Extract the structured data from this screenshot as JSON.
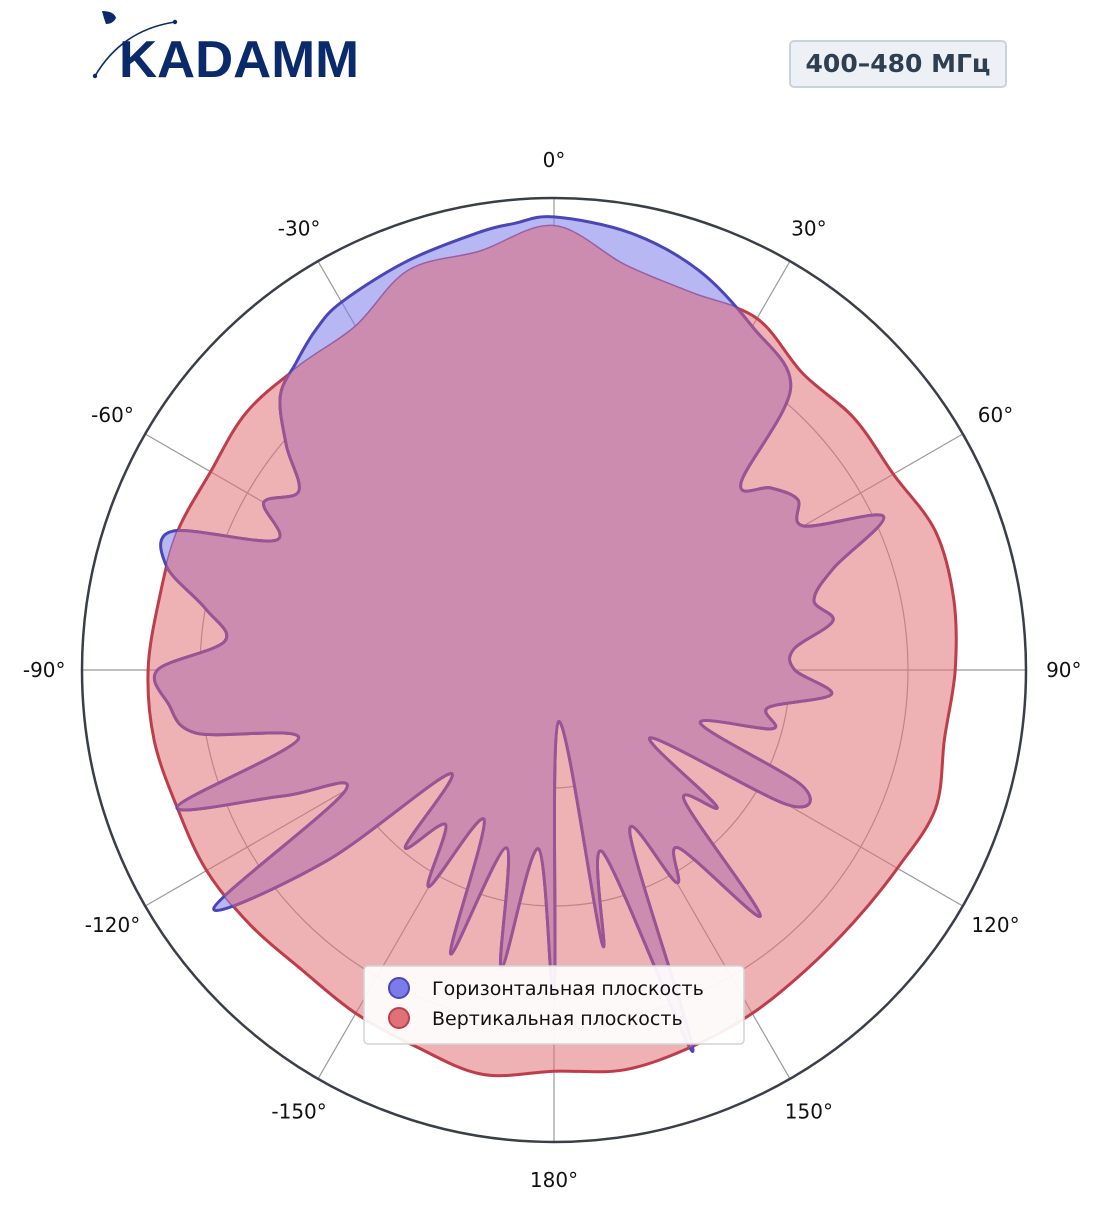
{
  "logo": {
    "text": "KADAMM",
    "color": "#0b2a6b"
  },
  "band_label": "400–480 МГц",
  "colors": {
    "horizontal_fill": "#7b7bea",
    "horizontal_line": "#4a46b8",
    "vertical_fill": "#e07177",
    "vertical_line": "#bd3d4a",
    "overlap_fill": "#cc8caf",
    "overlap_line": "#9a5393",
    "outer_ring": "#3a3e48",
    "grid": "#9a9a9a"
  },
  "chart_data": {
    "type": "polar",
    "angle_direction": "clockwise",
    "zero_location": "top",
    "theta_ticks": [
      "0°",
      "30°",
      "60°",
      "90°",
      "120°",
      "150°",
      "180°",
      "-150°",
      "-120°",
      "-90°",
      "-60°",
      "-30°"
    ],
    "r_range": [
      0,
      1
    ],
    "r_grid": [
      0.25,
      0.5,
      0.75,
      1.0
    ],
    "grid": true,
    "legend_placement": "lower-center",
    "series": [
      {
        "name": "Горизонтальная плоскость",
        "angles_deg": [
          0,
          10,
          20,
          30,
          40,
          45,
          50,
          55,
          60,
          65,
          70,
          75,
          80,
          85,
          90,
          95,
          100,
          105,
          110,
          115,
          120,
          125,
          130,
          135,
          140,
          145,
          150,
          155,
          160,
          165,
          170,
          175,
          180,
          -175,
          -170,
          -165,
          -160,
          -155,
          -150,
          -145,
          -140,
          -135,
          -130,
          -125,
          -120,
          -115,
          -110,
          -105,
          -100,
          -95,
          -90,
          -85,
          -80,
          -75,
          -70,
          -65,
          -60,
          -55,
          -50,
          -45,
          -40,
          -35,
          -30,
          -20,
          -10,
          -5
        ],
        "r": [
          0.96,
          0.94,
          0.9,
          0.84,
          0.78,
          0.56,
          0.6,
          0.63,
          0.61,
          0.77,
          0.63,
          0.57,
          0.6,
          0.51,
          0.51,
          0.59,
          0.46,
          0.48,
          0.33,
          0.58,
          0.57,
          0.25,
          0.45,
          0.39,
          0.68,
          0.46,
          0.52,
          0.38,
          0.86,
          0.4,
          0.59,
          0.11,
          0.69,
          0.38,
          0.64,
          0.39,
          0.64,
          0.35,
          0.53,
          0.4,
          0.49,
          0.31,
          0.63,
          0.88,
          0.51,
          0.63,
          0.85,
          0.56,
          0.77,
          0.82,
          0.84,
          0.7,
          0.75,
          0.85,
          0.86,
          0.65,
          0.71,
          0.66,
          0.74,
          0.82,
          0.85,
          0.88,
          0.9,
          0.92,
          0.94,
          0.95
        ]
      },
      {
        "name": "Вертикальная плоскость",
        "angles_deg": [
          0,
          10,
          20,
          30,
          40,
          50,
          60,
          70,
          80,
          90,
          100,
          110,
          120,
          130,
          140,
          150,
          160,
          170,
          180,
          -170,
          -160,
          -150,
          -140,
          -130,
          -120,
          -110,
          -100,
          -90,
          -80,
          -70,
          -60,
          -50,
          -40,
          -30,
          -20,
          -10
        ],
        "r": [
          0.94,
          0.87,
          0.85,
          0.86,
          0.82,
          0.83,
          0.83,
          0.86,
          0.86,
          0.85,
          0.84,
          0.86,
          0.84,
          0.83,
          0.83,
          0.84,
          0.85,
          0.86,
          0.85,
          0.87,
          0.85,
          0.84,
          0.83,
          0.84,
          0.85,
          0.85,
          0.86,
          0.86,
          0.85,
          0.85,
          0.84,
          0.85,
          0.84,
          0.84,
          0.9,
          0.9
        ]
      }
    ]
  }
}
